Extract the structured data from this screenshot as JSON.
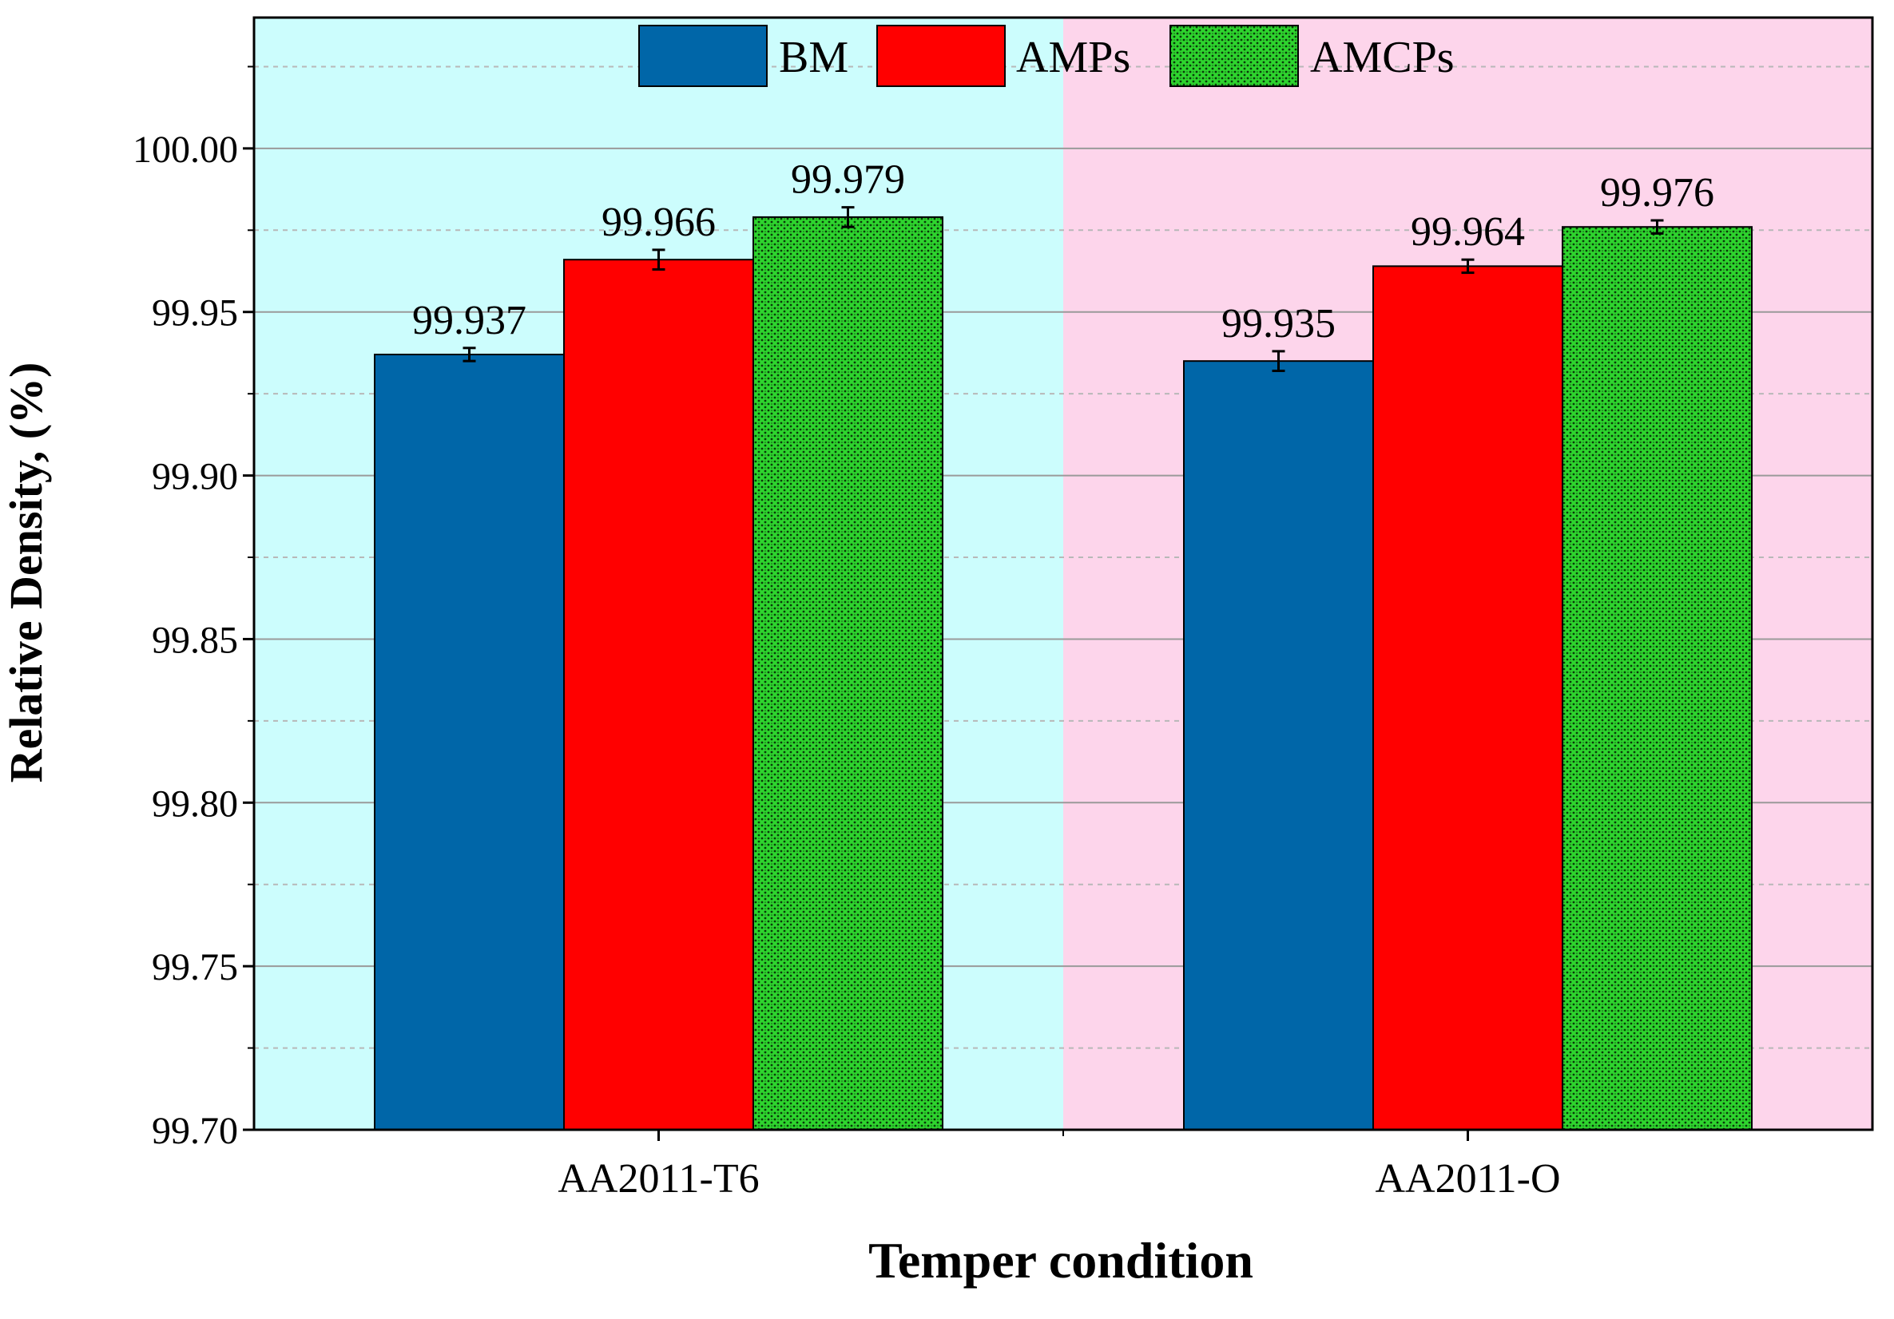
{
  "chart_data": {
    "type": "bar",
    "title": "",
    "xlabel": "Temper condition",
    "ylabel": "Relative Density, (%)",
    "ylim": [
      99.7,
      100.04
    ],
    "yticks": [
      99.7,
      99.75,
      99.8,
      99.85,
      99.9,
      99.95,
      100.0
    ],
    "ytick_labels": [
      "99.70",
      "99.75",
      "99.80",
      "99.85",
      "99.90",
      "99.95",
      "100.00"
    ],
    "categories": [
      "AA2011-T6",
      "AA2011-O"
    ],
    "category_backgrounds": [
      "#ccfdfd",
      "#fdd5eb"
    ],
    "grid": true,
    "legend_position": "top-center",
    "series": [
      {
        "name": "BM",
        "color": "#0066a8",
        "pattern": "solid",
        "values": [
          99.937,
          99.935
        ],
        "errors": [
          0.002,
          0.003
        ],
        "labels": [
          "99.937",
          "99.935"
        ]
      },
      {
        "name": "AMPs",
        "color": "#ff0000",
        "pattern": "solid",
        "values": [
          99.966,
          99.964
        ],
        "errors": [
          0.003,
          0.002
        ],
        "labels": [
          "99.966",
          "99.964"
        ]
      },
      {
        "name": "AMCPs",
        "color": "#21cc21",
        "pattern": "dotted",
        "values": [
          99.979,
          99.976
        ],
        "errors": [
          0.003,
          0.002
        ],
        "labels": [
          "99.979",
          "99.976"
        ]
      }
    ]
  }
}
